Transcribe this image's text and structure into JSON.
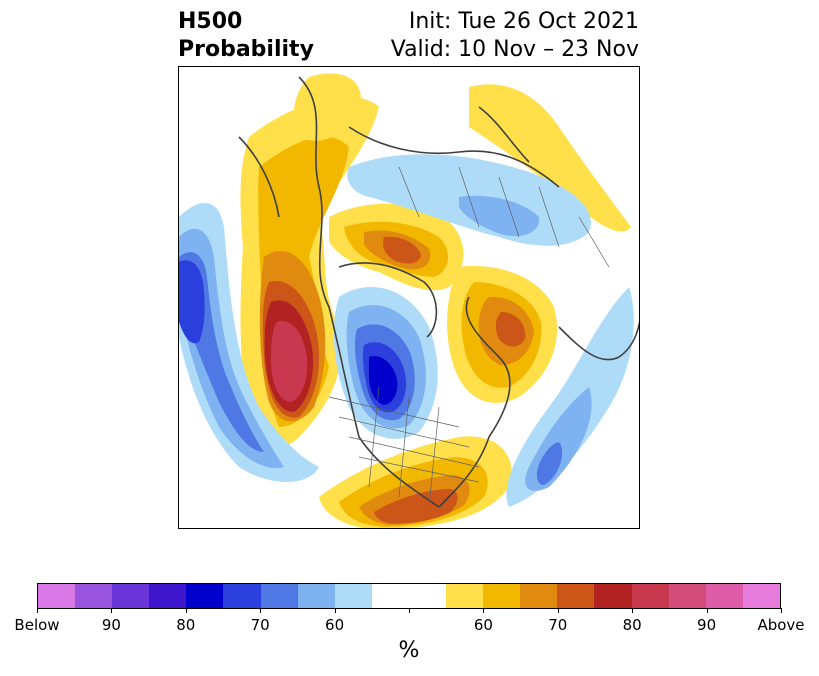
{
  "title": {
    "left_line1": "H500",
    "left_line2": "Probability",
    "right_line1": "Init: Tue 26 Oct 2021",
    "right_line2": "Valid: 10 Nov – 23 Nov"
  },
  "colorbar": {
    "unit": "%",
    "colors": [
      "#d877e6",
      "#9a55e0",
      "#6a35d8",
      "#3e16cc",
      "#0000cc",
      "#2a3fdc",
      "#4f78e4",
      "#7fb2f0",
      "#aedcf8",
      "#ffffff",
      "#ffffff",
      "#ffe04a",
      "#f2b800",
      "#e08a10",
      "#cc5518",
      "#b22222",
      "#c8384e",
      "#d24d7a",
      "#de5ca8",
      "#e87cdc"
    ],
    "tick_labels": [
      "Below",
      "90",
      "80",
      "70",
      "60",
      "",
      "60",
      "70",
      "80",
      "90",
      "Above"
    ]
  }
}
